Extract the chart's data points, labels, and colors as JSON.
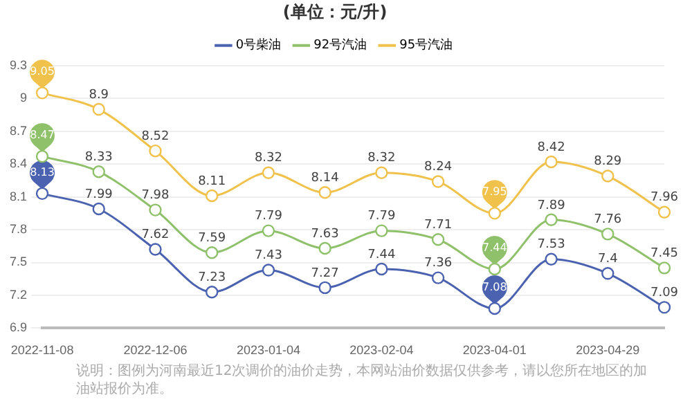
{
  "chart_data": {
    "type": "line",
    "title": "(单位：元/升)",
    "categories": [
      "2022-11-08",
      null,
      "2022-12-06",
      null,
      "2023-01-04",
      null,
      "2023-02-04",
      null,
      "2023-04-01",
      null,
      "2023-04-29",
      null
    ],
    "series": [
      {
        "name": "0号柴油",
        "color": "#4a62b0",
        "values": [
          8.13,
          7.99,
          7.62,
          7.23,
          7.43,
          7.27,
          7.44,
          7.36,
          7.08,
          7.53,
          7.4,
          7.09
        ]
      },
      {
        "name": "92号汽油",
        "color": "#8fc16a",
        "values": [
          8.47,
          8.33,
          7.98,
          7.59,
          7.79,
          7.63,
          7.79,
          7.71,
          7.44,
          7.89,
          7.76,
          7.45
        ]
      },
      {
        "name": "95号汽油",
        "color": "#f0c14b",
        "values": [
          9.05,
          8.9,
          8.52,
          8.11,
          8.32,
          8.14,
          8.32,
          8.24,
          7.95,
          8.42,
          8.29,
          7.96
        ]
      }
    ],
    "ylim": [
      6.9,
      9.3
    ],
    "yticks": [
      6.9,
      7.2,
      7.5,
      7.8,
      8.1,
      8.4,
      8.7,
      9,
      9.3
    ],
    "grid": "y",
    "legend": "top",
    "marker": "circle",
    "data_labels": true,
    "annotations": [
      "说明：图例为河南最近12次调价的油价走势，本网站油价数据仅供参考，请以您所在地区的加油站报价为准。"
    ]
  }
}
